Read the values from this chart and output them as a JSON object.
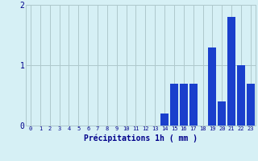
{
  "hours": [
    0,
    1,
    2,
    3,
    4,
    5,
    6,
    7,
    8,
    9,
    10,
    11,
    12,
    13,
    14,
    15,
    16,
    17,
    18,
    19,
    20,
    21,
    22,
    23
  ],
  "values": [
    0,
    0,
    0,
    0,
    0,
    0,
    0,
    0,
    0,
    0,
    0,
    0,
    0,
    0,
    0.2,
    0.7,
    0.7,
    0.7,
    0,
    1.3,
    0.4,
    1.8,
    1.0,
    0.7
  ],
  "bar_color": "#1a3fcc",
  "background_color": "#d6f0f5",
  "grid_color": "#aec8cc",
  "xlabel": "Précipitations 1h ( mm )",
  "xlabel_color": "#00008b",
  "tick_color": "#00008b",
  "ylim": [
    0,
    2
  ],
  "yticks": [
    0,
    1,
    2
  ],
  "bar_width": 0.85
}
